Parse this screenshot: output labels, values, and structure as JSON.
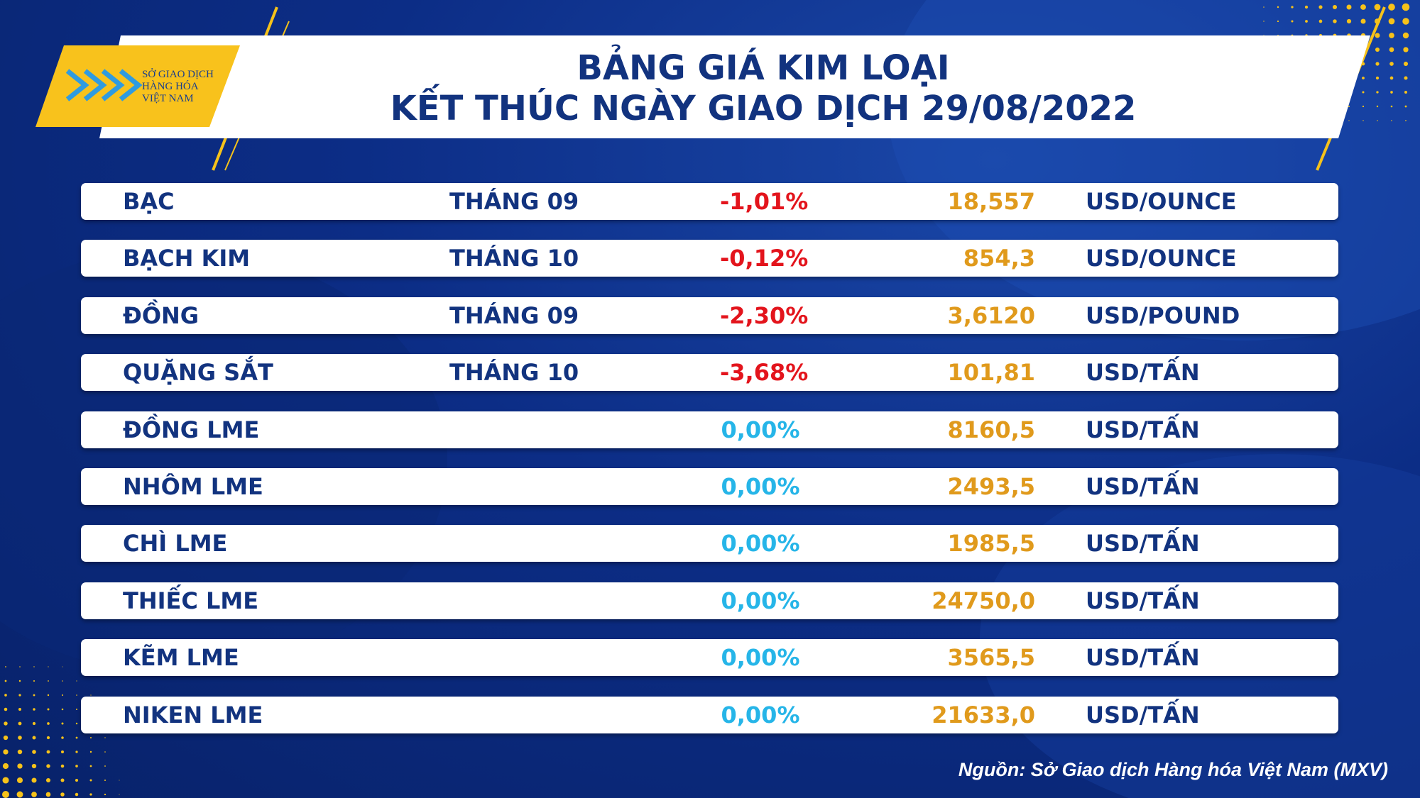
{
  "header": {
    "logo": [
      "SỞ GIAO DỊCH",
      "HÀNG HÓA",
      "VIỆT NAM"
    ],
    "title": [
      "BẢNG GIÁ KIM LOẠI",
      "KẾT THÚC NGÀY GIAO DỊCH 29/08/2022"
    ]
  },
  "table": {
    "rows": [
      {
        "name": "BẠC",
        "month": "THÁNG 09",
        "change": "-1,01%",
        "price": "18,557",
        "unit": "USD/OUNCE"
      },
      {
        "name": "BẠCH KIM",
        "month": "THÁNG 10",
        "change": "-0,12%",
        "price": "854,3",
        "unit": "USD/OUNCE"
      },
      {
        "name": "ĐỒNG",
        "month": "THÁNG 09",
        "change": "-2,30%",
        "price": "3,6120",
        "unit": "USD/POUND"
      },
      {
        "name": "QUẶNG SẮT",
        "month": "THÁNG 10",
        "change": "-3,68%",
        "price": "101,81",
        "unit": "USD/TẤN"
      },
      {
        "name": "ĐỒNG LME",
        "change": "0,00%",
        "price": "8160,5",
        "unit": "USD/TẤN"
      },
      {
        "name": "NHÔM LME",
        "change": "0,00%",
        "price": "2493,5",
        "unit": "USD/TẤN"
      },
      {
        "name": "CHÌ LME",
        "change": "0,00%",
        "price": "1985,5",
        "unit": "USD/TẤN"
      },
      {
        "name": "THIẾC LME",
        "change": "0,00%",
        "price": "24750,0",
        "unit": "USD/TẤN"
      },
      {
        "name": "KẼM LME",
        "change": "0,00%",
        "price": "3565,5",
        "unit": "USD/TẤN"
      },
      {
        "name": "NIKEN LME",
        "change": "0,00%",
        "price": "21633,0",
        "unit": "USD/TẤN"
      }
    ]
  },
  "footer": {
    "source": "Nguồn: Sở Giao dịch Hàng hóa Việt Nam (MXV)"
  }
}
